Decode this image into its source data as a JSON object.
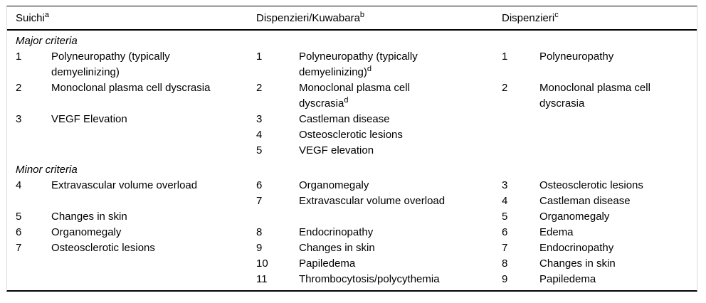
{
  "table": {
    "headers": [
      {
        "label": "Suichi",
        "sup": "a"
      },
      {
        "label": "Dispenzieri/Kuwabara",
        "sup": "b"
      },
      {
        "label": "Dispenzieri",
        "sup": "c"
      }
    ],
    "rows": [
      {
        "c1": {
          "heading": "Major criteria"
        }
      },
      {
        "c1": {
          "num": "1",
          "text": "Polyneuropathy (typically\ndemyelinizing)"
        },
        "c2": {
          "num": "1",
          "text": "Polyneuropathy (typically\ndemyelinizing)",
          "sup": "d"
        },
        "c3": {
          "num": "1",
          "text": "Polyneuropathy"
        }
      },
      {
        "c1": {
          "num": "2",
          "text": "Monoclonal plasma cell dyscrasia"
        },
        "c2": {
          "num": "2",
          "text": "Monoclonal plasma cell\ndyscrasia",
          "sup": "d"
        },
        "c3": {
          "num": "2",
          "text": "Monoclonal plasma cell\ndyscrasia"
        }
      },
      {
        "c1": {
          "num": "3",
          "text": "VEGF Elevation"
        },
        "c2": {
          "num": "3",
          "text": "Castleman disease"
        }
      },
      {
        "c2": {
          "num": "4",
          "text": "Osteosclerotic lesions"
        }
      },
      {
        "c2": {
          "num": "5",
          "text": "VEGF elevation"
        }
      },
      {
        "c1": {
          "heading": "Minor criteria"
        }
      },
      {
        "c1": {
          "num": "4",
          "text": "Extravascular volume overload"
        },
        "c2": {
          "num": "6",
          "text": "Organomegaly"
        },
        "c3": {
          "num": "3",
          "text": "Osteosclerotic lesions"
        }
      },
      {
        "c2": {
          "num": "7",
          "text": "Extravascular volume overload"
        },
        "c3": {
          "num": "4",
          "text": "Castleman disease"
        }
      },
      {
        "c1": {
          "num": "5",
          "text": "Changes in skin"
        },
        "c3": {
          "num": "5",
          "text": "Organomegaly"
        }
      },
      {
        "c1": {
          "num": "6",
          "text": "Organomegaly"
        },
        "c2": {
          "num": "8",
          "text": "Endocrinopathy"
        },
        "c3": {
          "num": "6",
          "text": "Edema"
        }
      },
      {
        "c1": {
          "num": "7",
          "text": "Osteosclerotic lesions"
        },
        "c2": {
          "num": "9",
          "text": "Changes in skin"
        },
        "c3": {
          "num": "7",
          "text": "Endocrinopathy"
        }
      },
      {
        "c2": {
          "num": "10",
          "text": "Papiledema"
        },
        "c3": {
          "num": "8",
          "text": "Changes in skin"
        }
      },
      {
        "c2": {
          "num": "11",
          "text": "Thrombocytosis/polycythemia"
        },
        "c3": {
          "num": "9",
          "text": "Papiledema"
        }
      }
    ],
    "colors": {
      "text": "#000000",
      "rule": "#000000",
      "side_border": "#dcdcdc",
      "background": "#ffffff"
    }
  }
}
